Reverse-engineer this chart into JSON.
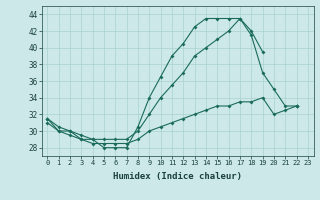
{
  "xlabel": "Humidex (Indice chaleur)",
  "background_color": "#cce8e8",
  "grid_color": "#aad0d0",
  "line_color": "#1a6b5a",
  "x_ticks": [
    0,
    1,
    2,
    3,
    4,
    5,
    6,
    7,
    8,
    9,
    10,
    11,
    12,
    13,
    14,
    15,
    16,
    17,
    18,
    19,
    20,
    21,
    22,
    23
  ],
  "ylim": [
    27,
    45
  ],
  "xlim": [
    -0.5,
    23.5
  ],
  "yticks": [
    28,
    30,
    32,
    34,
    36,
    38,
    40,
    42,
    44
  ],
  "line1_y": [
    31.5,
    30.0,
    30.0,
    29.0,
    29.0,
    28.0,
    28.0,
    28.0,
    30.5,
    34.0,
    36.5,
    39.0,
    40.5,
    42.5,
    43.5,
    43.5,
    43.5,
    43.5,
    42.0,
    39.5,
    null,
    null,
    33.0,
    null
  ],
  "line2_y": [
    31.5,
    30.5,
    30.0,
    29.5,
    29.0,
    29.0,
    29.0,
    29.0,
    30.0,
    32.0,
    34.0,
    35.5,
    37.0,
    39.0,
    40.0,
    41.0,
    42.0,
    43.5,
    41.5,
    37.0,
    35.0,
    33.0,
    33.0,
    null
  ],
  "line3_y": [
    31.0,
    30.0,
    29.5,
    29.0,
    28.5,
    28.5,
    28.5,
    28.5,
    29.0,
    30.0,
    30.5,
    31.0,
    31.5,
    32.0,
    32.5,
    33.0,
    33.0,
    33.5,
    33.5,
    34.0,
    32.0,
    32.5,
    33.0,
    null
  ]
}
